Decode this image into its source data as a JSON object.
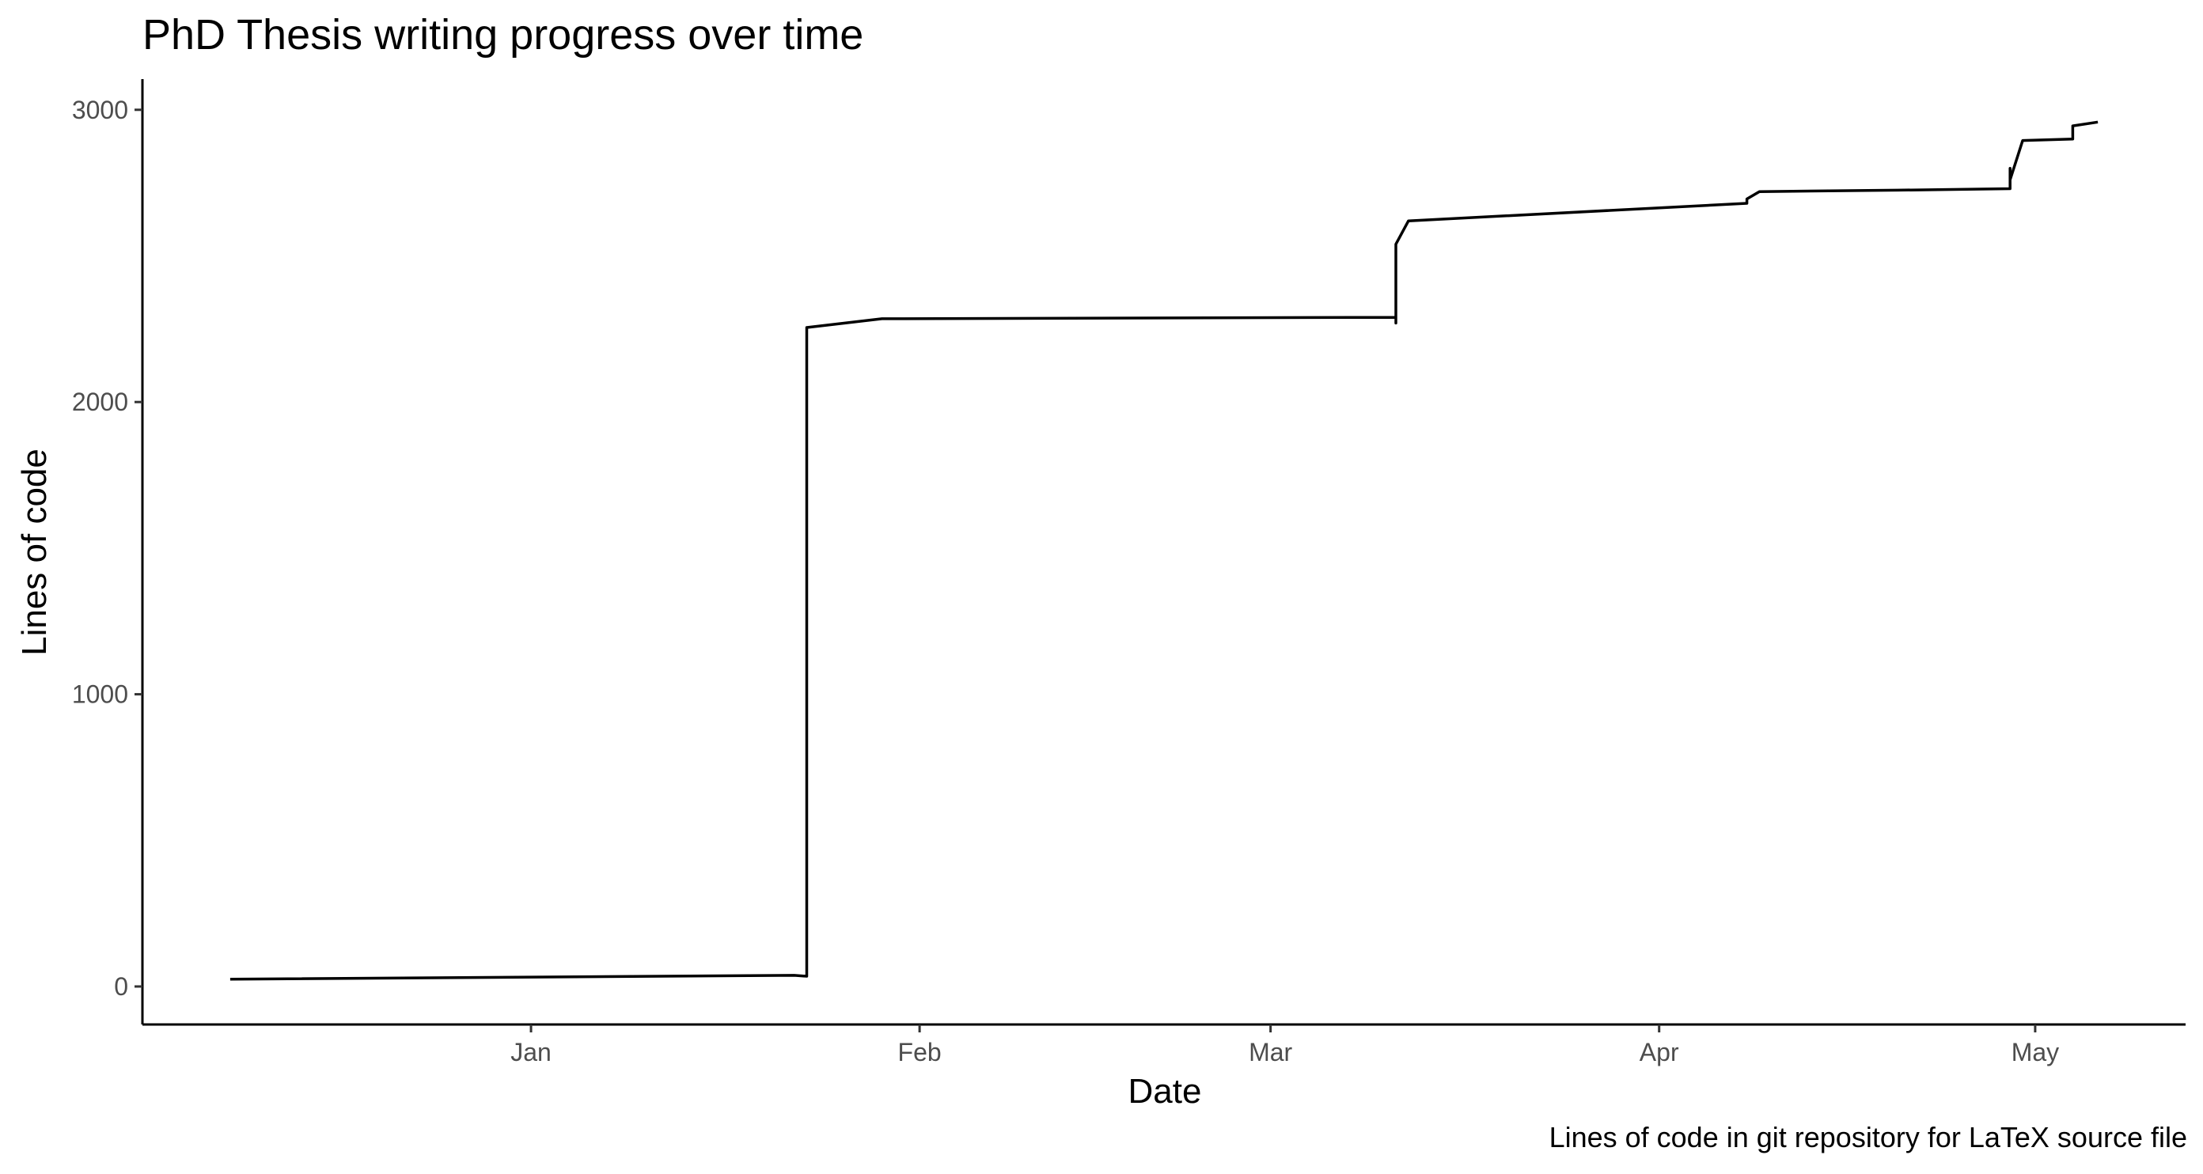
{
  "chart_data": {
    "type": "line",
    "title": "PhD Thesis writing progress over time",
    "xlabel": "Date",
    "ylabel": "Lines of code",
    "caption": "Lines of code in git repository for LaTeX source file",
    "x_ticks": [
      {
        "label": "Jan",
        "date": "2019-01-01"
      },
      {
        "label": "Feb",
        "date": "2019-02-01"
      },
      {
        "label": "Mar",
        "date": "2019-03-01"
      },
      {
        "label": "Apr",
        "date": "2019-04-01"
      },
      {
        "label": "May",
        "date": "2019-05-01"
      }
    ],
    "y_ticks": [
      {
        "label": "0",
        "value": 0
      },
      {
        "label": "1000",
        "value": 1000
      },
      {
        "label": "2000",
        "value": 2000
      },
      {
        "label": "3000",
        "value": 3000
      }
    ],
    "xlim": [
      "2018-12-01",
      "2019-05-13"
    ],
    "ylim": [
      -130,
      3105
    ],
    "grid": false,
    "legend": "none",
    "series": [
      {
        "color": "#000000",
        "points": [
          {
            "x": "2018-12-08",
            "y": 25
          },
          {
            "x": "2019-01-22",
            "y": 38
          },
          {
            "x": "2019-01-23",
            "y": 35
          },
          {
            "x": "2019-01-23",
            "y": 2255
          },
          {
            "x": "2019-01-29",
            "y": 2285
          },
          {
            "x": "2019-03-11",
            "y": 2290
          },
          {
            "x": "2019-03-11",
            "y": 2310
          },
          {
            "x": "2019-03-11",
            "y": 2320
          },
          {
            "x": "2019-03-11",
            "y": 2270
          },
          {
            "x": "2019-03-11",
            "y": 2410
          },
          {
            "x": "2019-03-11",
            "y": 2540
          },
          {
            "x": "2019-03-12",
            "y": 2620
          },
          {
            "x": "2019-04-08",
            "y": 2680
          },
          {
            "x": "2019-04-08",
            "y": 2695
          },
          {
            "x": "2019-04-09",
            "y": 2720
          },
          {
            "x": "2019-04-20",
            "y": 2725
          },
          {
            "x": "2019-04-29",
            "y": 2730
          },
          {
            "x": "2019-04-29",
            "y": 2745
          },
          {
            "x": "2019-04-29",
            "y": 2800
          },
          {
            "x": "2019-04-29",
            "y": 2760
          },
          {
            "x": "2019-04-30",
            "y": 2895
          },
          {
            "x": "2019-05-04",
            "y": 2900
          },
          {
            "x": "2019-05-04",
            "y": 2945
          },
          {
            "x": "2019-05-06",
            "y": 2958
          }
        ]
      }
    ]
  }
}
